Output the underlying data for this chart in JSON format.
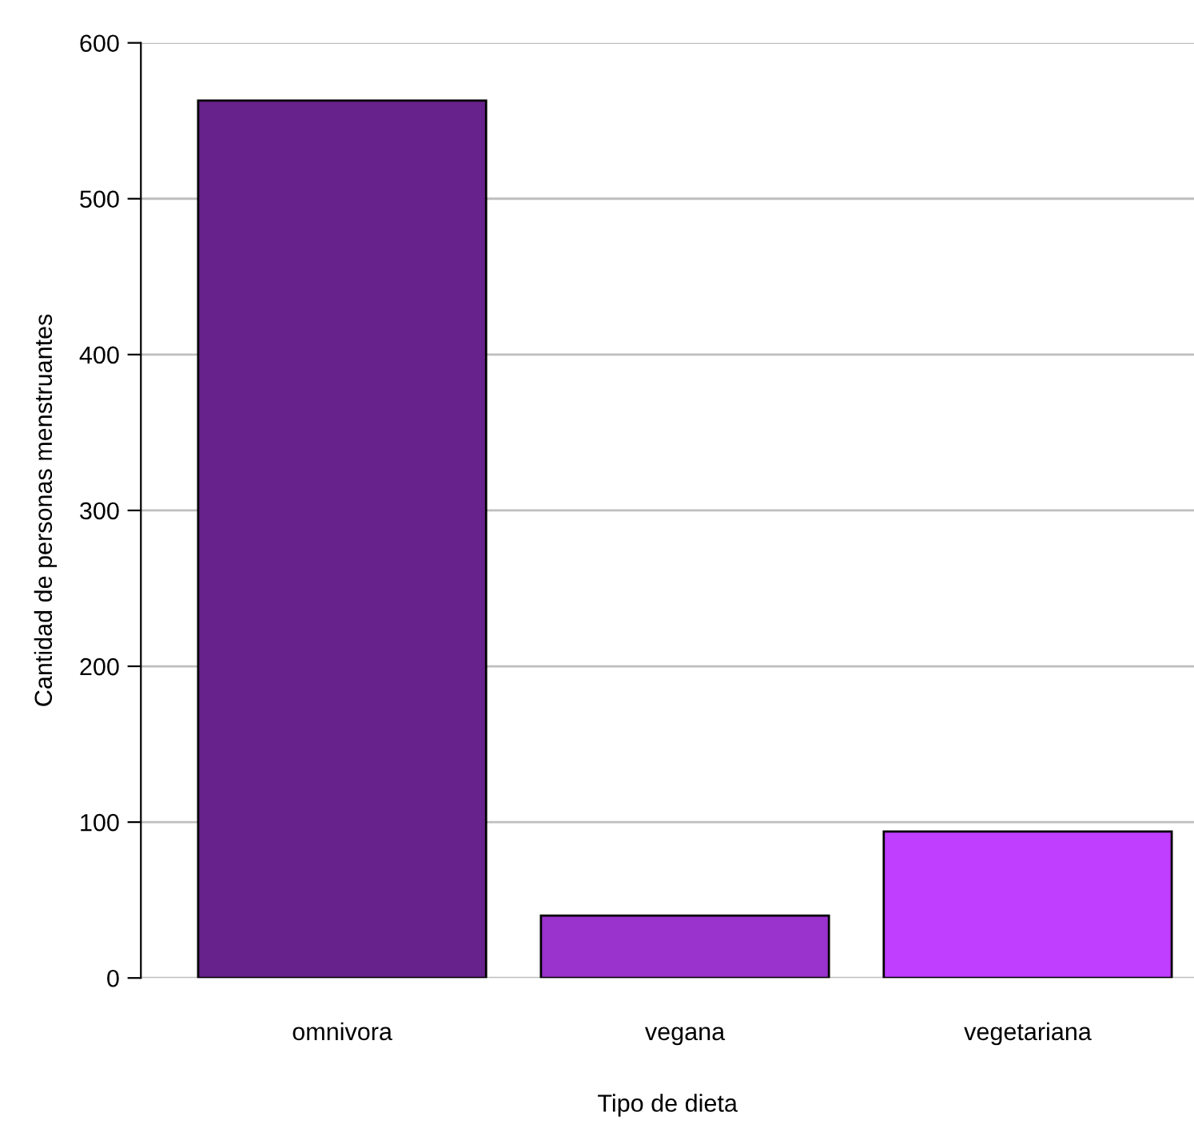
{
  "chart_data": {
    "type": "bar",
    "xlabel": "Tipo de dieta",
    "ylabel": "Cantidad de personas menstruantes",
    "categories": [
      "omnivora",
      "vegana",
      "vegetariana"
    ],
    "values": [
      563,
      40,
      94
    ],
    "colors": [
      "#68228b",
      "#9a32cd",
      "#bf3eff"
    ],
    "ylim": [
      0,
      600
    ],
    "yticks": [
      0,
      100,
      200,
      300,
      400,
      500,
      600
    ],
    "grid": "y"
  }
}
